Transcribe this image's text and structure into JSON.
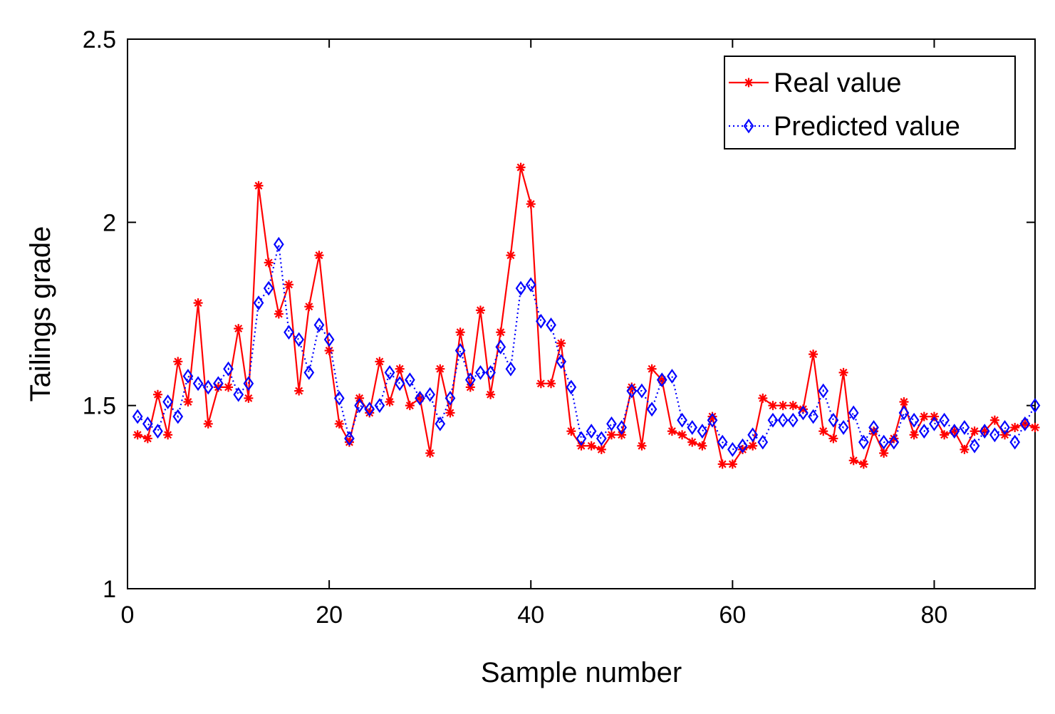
{
  "colors": {
    "real": "#ff0000",
    "predicted": "#0000ff",
    "axis": "#000000",
    "background": "#ffffff"
  },
  "chart_data": {
    "type": "line",
    "title": "",
    "xlabel": "Sample number",
    "ylabel": "Tailings grade",
    "xlim": [
      0,
      90
    ],
    "ylim": [
      1,
      2.5
    ],
    "xticks": [
      0,
      20,
      40,
      60,
      80
    ],
    "yticks": [
      1,
      1.5,
      2,
      2.5
    ],
    "xtick_labels": [
      "0",
      "20",
      "40",
      "60",
      "80"
    ],
    "ytick_labels": [
      "1",
      "1.5",
      "2",
      "2.5"
    ],
    "grid": false,
    "legend": {
      "position": "top-right",
      "entries": [
        "Real value",
        "Predicted value"
      ]
    },
    "x": [
      1,
      2,
      3,
      4,
      5,
      6,
      7,
      8,
      9,
      10,
      11,
      12,
      13,
      14,
      15,
      16,
      17,
      18,
      19,
      20,
      21,
      22,
      23,
      24,
      25,
      26,
      27,
      28,
      29,
      30,
      31,
      32,
      33,
      34,
      35,
      36,
      37,
      38,
      39,
      40,
      41,
      42,
      43,
      44,
      45,
      46,
      47,
      48,
      49,
      50,
      51,
      52,
      53,
      54,
      55,
      56,
      57,
      58,
      59,
      60,
      61,
      62,
      63,
      64,
      65,
      66,
      67,
      68,
      69,
      70,
      71,
      72,
      73,
      74,
      75,
      76,
      77,
      78,
      79,
      80,
      81,
      82,
      83,
      84,
      85,
      86,
      87,
      88,
      89,
      90
    ],
    "series": [
      {
        "name": "Real value",
        "line": "solid",
        "marker": "asterisk",
        "values": [
          1.42,
          1.41,
          1.53,
          1.42,
          1.62,
          1.51,
          1.78,
          1.45,
          1.55,
          1.55,
          1.71,
          1.52,
          2.1,
          1.89,
          1.75,
          1.83,
          1.54,
          1.77,
          1.91,
          1.65,
          1.45,
          1.4,
          1.52,
          1.48,
          1.62,
          1.51,
          1.6,
          1.5,
          1.52,
          1.37,
          1.6,
          1.48,
          1.7,
          1.55,
          1.76,
          1.53,
          1.7,
          1.91,
          2.15,
          2.05,
          1.56,
          1.56,
          1.67,
          1.43,
          1.39,
          1.39,
          1.38,
          1.42,
          1.42,
          1.55,
          1.39,
          1.6,
          1.57,
          1.43,
          1.42,
          1.4,
          1.39,
          1.47,
          1.34,
          1.34,
          1.38,
          1.39,
          1.52,
          1.5,
          1.5,
          1.5,
          1.49,
          1.64,
          1.43,
          1.41,
          1.59,
          1.35,
          1.34,
          1.43,
          1.37,
          1.41,
          1.51,
          1.42,
          1.47,
          1.47,
          1.42,
          1.43,
          1.38,
          1.43,
          1.43,
          1.46,
          1.42,
          1.44,
          1.45,
          1.44
        ]
      },
      {
        "name": "Predicted value",
        "line": "dotted",
        "marker": "diamond",
        "values": [
          1.47,
          1.45,
          1.43,
          1.51,
          1.47,
          1.58,
          1.56,
          1.55,
          1.56,
          1.6,
          1.53,
          1.56,
          1.78,
          1.82,
          1.94,
          1.7,
          1.68,
          1.59,
          1.72,
          1.68,
          1.52,
          1.41,
          1.5,
          1.49,
          1.5,
          1.59,
          1.56,
          1.57,
          1.52,
          1.53,
          1.45,
          1.52,
          1.65,
          1.57,
          1.59,
          1.59,
          1.66,
          1.6,
          1.82,
          1.83,
          1.73,
          1.72,
          1.62,
          1.55,
          1.41,
          1.43,
          1.41,
          1.45,
          1.44,
          1.54,
          1.54,
          1.49,
          1.57,
          1.58,
          1.46,
          1.44,
          1.43,
          1.46,
          1.4,
          1.38,
          1.39,
          1.42,
          1.4,
          1.46,
          1.46,
          1.46,
          1.48,
          1.47,
          1.54,
          1.46,
          1.44,
          1.48,
          1.4,
          1.44,
          1.4,
          1.4,
          1.48,
          1.46,
          1.43,
          1.45,
          1.46,
          1.43,
          1.44,
          1.39,
          1.43,
          1.42,
          1.44,
          1.4,
          1.45,
          1.5
        ]
      }
    ]
  }
}
